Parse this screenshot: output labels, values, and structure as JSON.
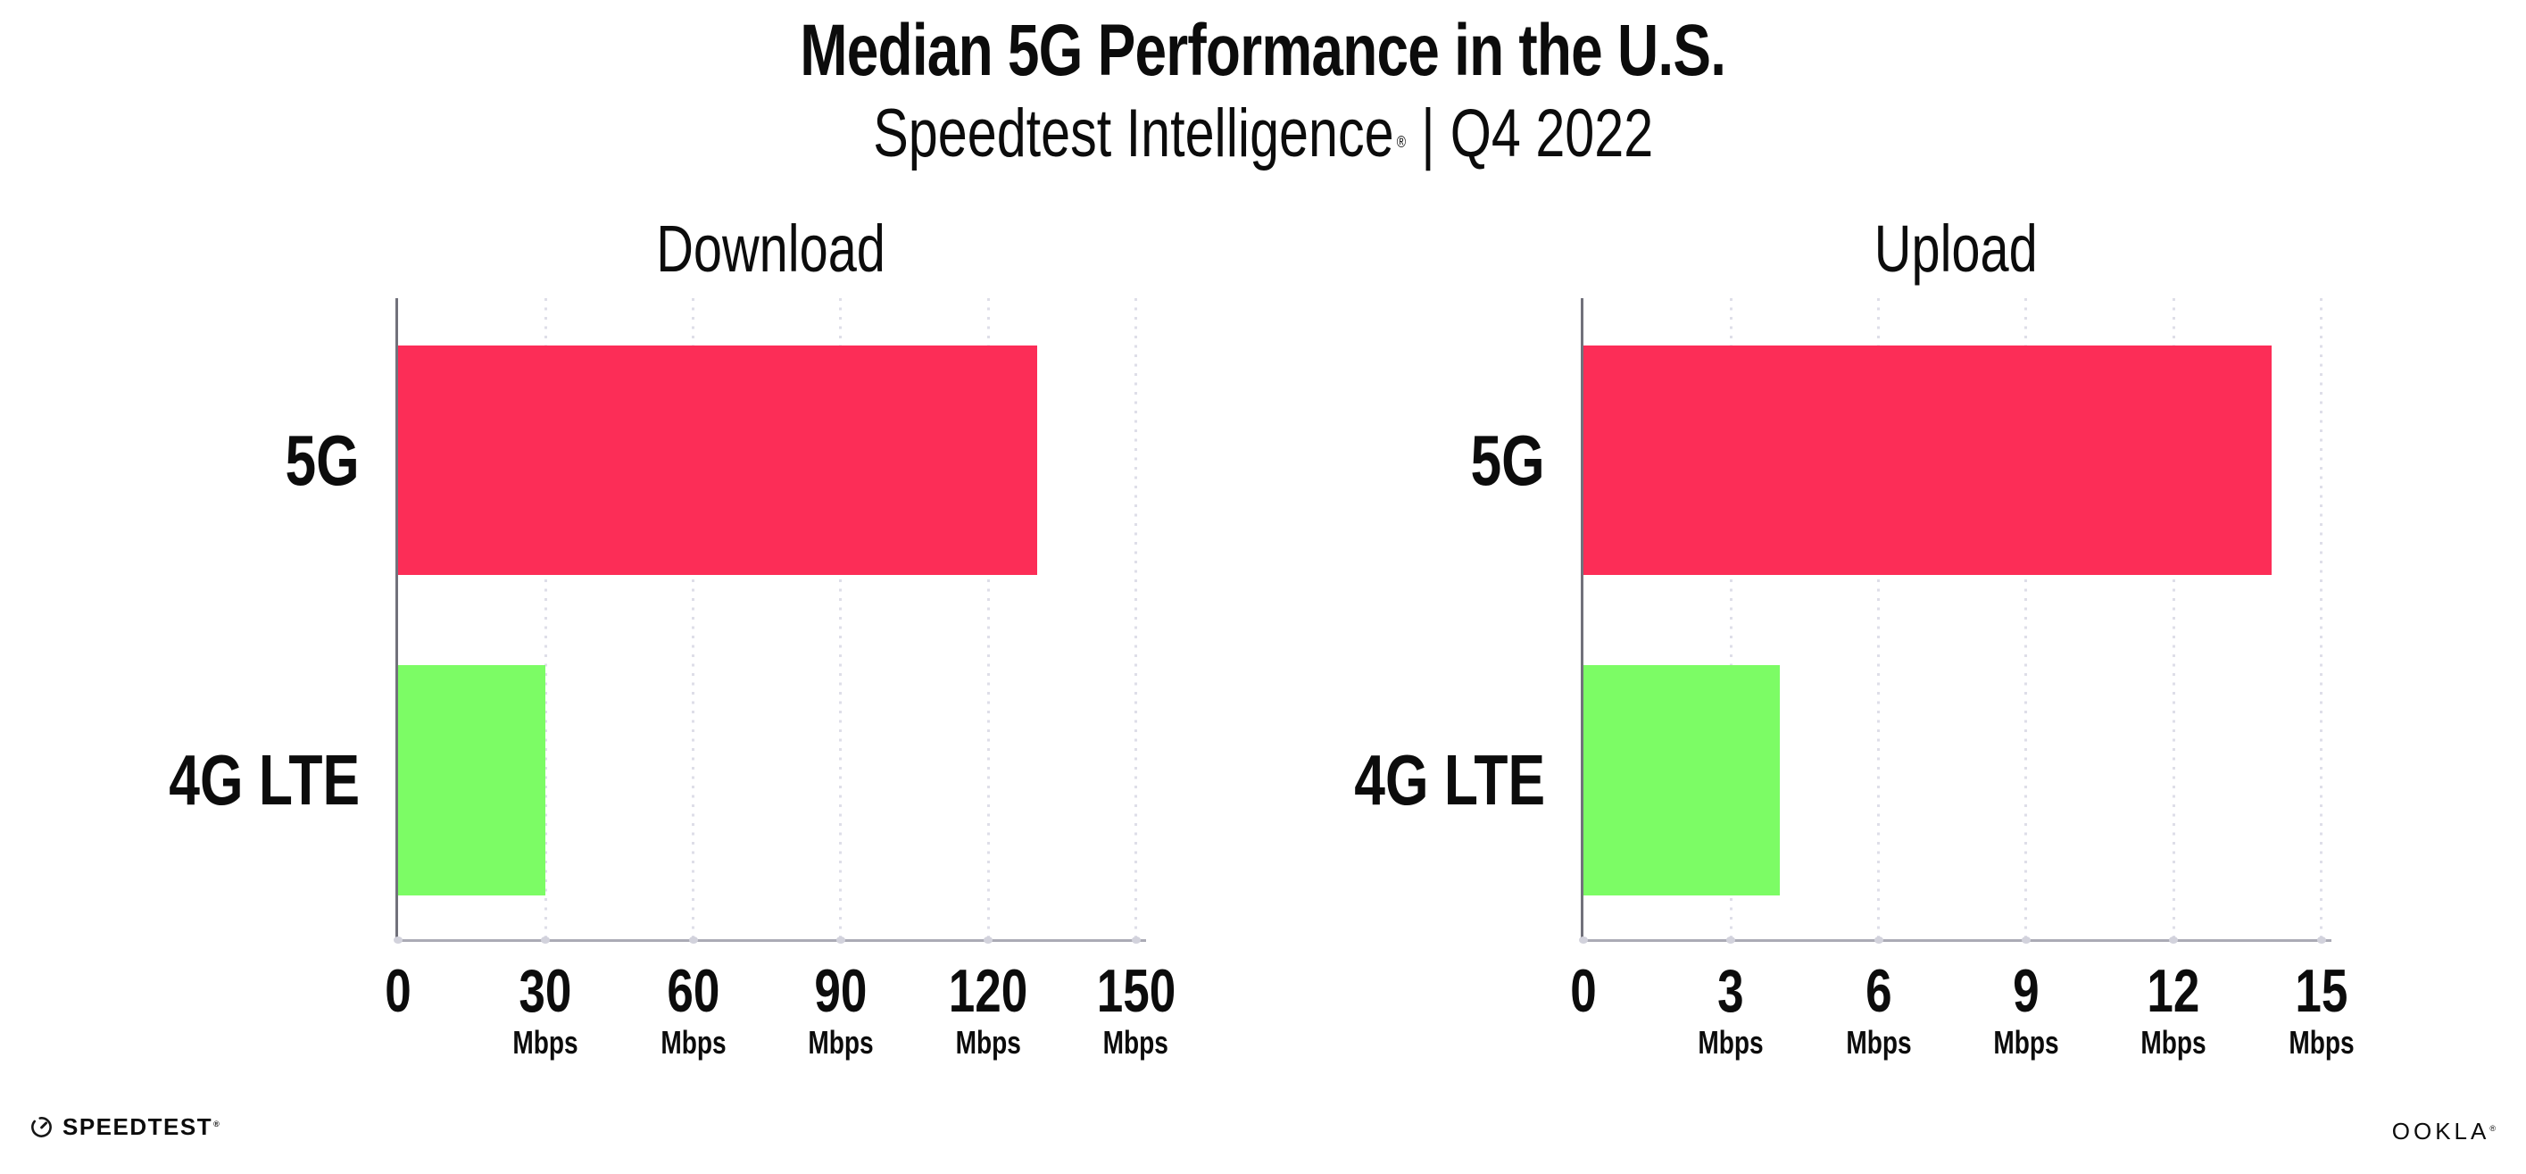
{
  "header": {
    "title": "Median 5G Performance in the U.S.",
    "subtitle": {
      "brand": "Speedtest Intelligence",
      "registered_mark": "®",
      "separator": "|",
      "period": "Q4 2022"
    }
  },
  "chart_data": [
    {
      "type": "bar",
      "orientation": "horizontal",
      "title": "Download",
      "categories": [
        "5G",
        "4G LTE"
      ],
      "values": [
        130,
        30
      ],
      "unit": "Mbps",
      "xlim": [
        0,
        150
      ],
      "xticks": [
        0,
        30,
        60,
        90,
        120,
        150
      ],
      "tick_unit_label": "Mbps",
      "grid": "dotted-vertical",
      "legend": "none",
      "bar_colors": [
        "#FC2D57",
        "#7CFC65"
      ]
    },
    {
      "type": "bar",
      "orientation": "horizontal",
      "title": "Upload",
      "categories": [
        "5G",
        "4G LTE"
      ],
      "values": [
        14,
        4
      ],
      "unit": "Mbps",
      "xlim": [
        0,
        15
      ],
      "xticks": [
        0,
        3,
        6,
        9,
        12,
        15
      ],
      "tick_unit_label": "Mbps",
      "grid": "dotted-vertical",
      "legend": "none",
      "bar_colors": [
        "#FC2D57",
        "#7CFC65"
      ]
    }
  ],
  "colors": {
    "bar_5g": "#FC2D57",
    "bar_4g_lte": "#7CFC65",
    "axis_line": "#ABABB5",
    "y_spine": "#71717B",
    "gridline_dot": "#DEDEE8",
    "text": "#0C0C0C",
    "background": "#FFFFFF"
  },
  "footer": {
    "speedtest_logo": {
      "icon": "speedtest-gauge-icon",
      "text": "SPEEDTEST",
      "mark": "®"
    },
    "ookla_logo": {
      "text": "OOKLA",
      "mark": "®"
    }
  }
}
